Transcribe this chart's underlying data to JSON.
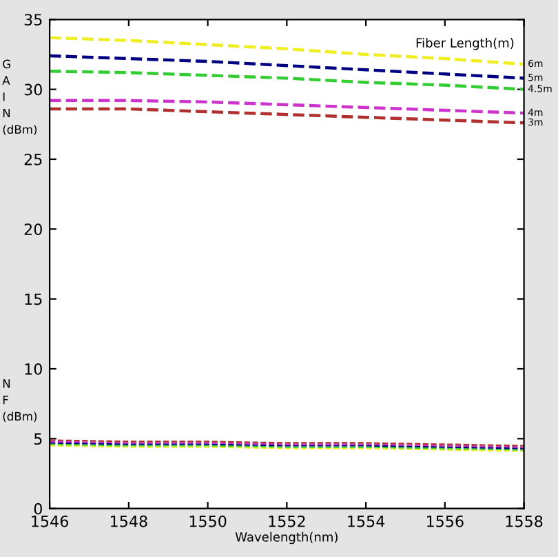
{
  "chart_data": {
    "type": "line",
    "xlabel": "Wavelength(nm)",
    "ylabel": "G\nA\nI\nN\n(dBm)",
    "legend_title": "Fiber Length(m)",
    "annotations": [
      "N\nF\n(dBm)"
    ],
    "x": [
      1546,
      1548,
      1550,
      1552,
      1554,
      1556,
      1558
    ],
    "series": [
      {
        "name": "6m",
        "color": "#eeee22",
        "values": [
          33.7,
          33.5,
          33.2,
          32.9,
          32.5,
          32.2,
          31.8
        ]
      },
      {
        "name": "5m",
        "color": "#000080",
        "values": [
          32.4,
          32.2,
          32.0,
          31.7,
          31.4,
          31.1,
          30.8
        ]
      },
      {
        "name": "4.5m",
        "color": "#33cc33",
        "values": [
          31.3,
          31.2,
          31.0,
          30.8,
          30.5,
          30.3,
          30.0
        ]
      },
      {
        "name": "4m",
        "color": "#cc33cc",
        "values": [
          29.2,
          29.2,
          29.1,
          28.9,
          28.7,
          28.5,
          28.3
        ]
      },
      {
        "name": "3m",
        "color": "#b03030",
        "values": [
          28.6,
          28.6,
          28.4,
          28.2,
          28.0,
          27.8,
          27.6
        ]
      },
      {
        "color": "#eeee22",
        "values": [
          4.5,
          4.4,
          4.4,
          4.3,
          4.3,
          4.2,
          4.1
        ]
      },
      {
        "color": "#33cc33",
        "values": [
          4.6,
          4.5,
          4.5,
          4.4,
          4.4,
          4.3,
          4.2
        ]
      },
      {
        "color": "#000080",
        "values": [
          4.7,
          4.6,
          4.6,
          4.5,
          4.5,
          4.4,
          4.3
        ]
      },
      {
        "color": "#cc33cc",
        "values": [
          4.8,
          4.7,
          4.7,
          4.6,
          4.6,
          4.5,
          4.4
        ]
      },
      {
        "color": "#b03030",
        "values": [
          4.9,
          4.8,
          4.8,
          4.7,
          4.7,
          4.6,
          4.5
        ]
      }
    ],
    "xlim": [
      1546,
      1558
    ],
    "xticks": [
      1546,
      1548,
      1550,
      1552,
      1554,
      1556,
      1558
    ],
    "ylim": [
      0,
      35
    ],
    "yticks": [
      0,
      5,
      10,
      15,
      20,
      25,
      30,
      35
    ],
    "grid": false,
    "legend": false,
    "line_style": "dashed",
    "marker": "none"
  }
}
